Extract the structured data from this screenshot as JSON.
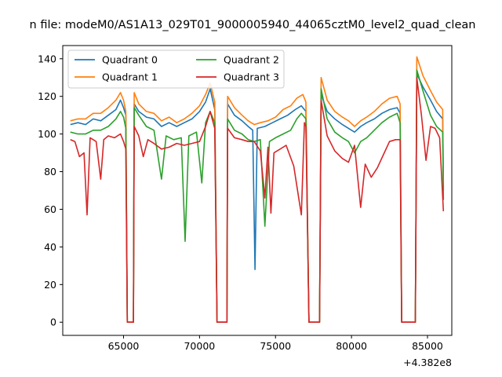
{
  "chart_data": {
    "type": "line",
    "title": "n file: modeM0/AS1A13_029T01_9000005940_44065cztM0_level2_quad_clean",
    "xlabel": "",
    "ylabel": "",
    "x_offset_label": "+4.382e8",
    "xlim": [
      61000,
      86600
    ],
    "ylim": [
      -7,
      147
    ],
    "x_ticks": [
      65000,
      70000,
      75000,
      80000,
      85000
    ],
    "x_tick_labels": [
      "65000",
      "70000",
      "75000",
      "80000",
      "85000"
    ],
    "y_ticks": [
      0,
      20,
      40,
      60,
      80,
      100,
      120,
      140
    ],
    "y_tick_labels": [
      "0",
      "20",
      "40",
      "60",
      "80",
      "100",
      "120",
      "140"
    ],
    "grid": false,
    "legend_placement": "upper-left, two columns",
    "series": [
      {
        "name": "Quadrant 0",
        "color": "#1f77b4",
        "points": [
          [
            61500,
            105
          ],
          [
            62000,
            106
          ],
          [
            62500,
            105
          ],
          [
            63000,
            108
          ],
          [
            63500,
            107
          ],
          [
            64000,
            110
          ],
          [
            64500,
            113
          ],
          [
            64800,
            118
          ],
          [
            65000,
            114
          ],
          [
            65150,
            110
          ],
          [
            65250,
            0
          ],
          [
            65650,
            0
          ],
          [
            65700,
            116
          ],
          [
            66000,
            112
          ],
          [
            66500,
            109
          ],
          [
            67000,
            108
          ],
          [
            67500,
            104
          ],
          [
            68000,
            106
          ],
          [
            68500,
            104
          ],
          [
            69000,
            106
          ],
          [
            69500,
            108
          ],
          [
            70000,
            112
          ],
          [
            70400,
            117
          ],
          [
            70700,
            124
          ],
          [
            71000,
            113
          ],
          [
            71150,
            0
          ],
          [
            71800,
            0
          ],
          [
            71850,
            116
          ],
          [
            72300,
            110
          ],
          [
            72800,
            107
          ],
          [
            73200,
            104
          ],
          [
            73500,
            102
          ],
          [
            73650,
            28
          ],
          [
            73800,
            103
          ],
          [
            74300,
            104
          ],
          [
            74800,
            106
          ],
          [
            75300,
            108
          ],
          [
            75800,
            110
          ],
          [
            76300,
            113
          ],
          [
            76700,
            115
          ],
          [
            77000,
            112
          ],
          [
            77200,
            0
          ],
          [
            77900,
            0
          ],
          [
            78000,
            121
          ],
          [
            78400,
            112
          ],
          [
            78900,
            108
          ],
          [
            79400,
            105
          ],
          [
            79800,
            103
          ],
          [
            80200,
            101
          ],
          [
            80600,
            104
          ],
          [
            81000,
            106
          ],
          [
            81500,
            108
          ],
          [
            82000,
            111
          ],
          [
            82500,
            113
          ],
          [
            83000,
            114
          ],
          [
            83200,
            111
          ],
          [
            83300,
            0
          ],
          [
            84200,
            0
          ],
          [
            84300,
            132
          ],
          [
            84700,
            125
          ],
          [
            85200,
            118
          ],
          [
            85600,
            112
          ],
          [
            86000,
            108
          ],
          [
            86050,
            70
          ]
        ]
      },
      {
        "name": "Quadrant 1",
        "color": "#ff7f0e",
        "points": [
          [
            61500,
            107
          ],
          [
            62000,
            108
          ],
          [
            62500,
            108
          ],
          [
            63000,
            111
          ],
          [
            63500,
            111
          ],
          [
            64000,
            114
          ],
          [
            64500,
            118
          ],
          [
            64800,
            122
          ],
          [
            65000,
            118
          ],
          [
            65150,
            112
          ],
          [
            65250,
            0
          ],
          [
            65650,
            0
          ],
          [
            65700,
            122
          ],
          [
            66000,
            116
          ],
          [
            66500,
            112
          ],
          [
            67000,
            111
          ],
          [
            67500,
            107
          ],
          [
            68000,
            109
          ],
          [
            68500,
            106
          ],
          [
            69000,
            108
          ],
          [
            69500,
            111
          ],
          [
            70000,
            115
          ],
          [
            70400,
            121
          ],
          [
            70700,
            127
          ],
          [
            71000,
            117
          ],
          [
            71150,
            0
          ],
          [
            71800,
            0
          ],
          [
            71850,
            120
          ],
          [
            72300,
            114
          ],
          [
            72800,
            110
          ],
          [
            73200,
            107
          ],
          [
            73600,
            105
          ],
          [
            74000,
            106
          ],
          [
            74500,
            107
          ],
          [
            75000,
            109
          ],
          [
            75500,
            113
          ],
          [
            76000,
            115
          ],
          [
            76400,
            119
          ],
          [
            76800,
            121
          ],
          [
            77000,
            117
          ],
          [
            77200,
            0
          ],
          [
            77900,
            0
          ],
          [
            78000,
            130
          ],
          [
            78400,
            118
          ],
          [
            78900,
            112
          ],
          [
            79400,
            109
          ],
          [
            79800,
            107
          ],
          [
            80200,
            104
          ],
          [
            80600,
            107
          ],
          [
            81000,
            109
          ],
          [
            81500,
            112
          ],
          [
            82000,
            116
          ],
          [
            82500,
            119
          ],
          [
            83000,
            120
          ],
          [
            83200,
            116
          ],
          [
            83300,
            0
          ],
          [
            84200,
            0
          ],
          [
            84300,
            141
          ],
          [
            84700,
            131
          ],
          [
            85200,
            123
          ],
          [
            85600,
            117
          ],
          [
            86000,
            113
          ],
          [
            86050,
            72
          ]
        ]
      },
      {
        "name": "Quadrant 2",
        "color": "#2ca02c",
        "points": [
          [
            61500,
            101
          ],
          [
            62000,
            100
          ],
          [
            62500,
            100
          ],
          [
            63000,
            102
          ],
          [
            63500,
            102
          ],
          [
            64000,
            104
          ],
          [
            64500,
            108
          ],
          [
            64800,
            112
          ],
          [
            65000,
            109
          ],
          [
            65150,
            103
          ],
          [
            65250,
            0
          ],
          [
            65650,
            0
          ],
          [
            65700,
            114
          ],
          [
            66000,
            110
          ],
          [
            66500,
            104
          ],
          [
            67000,
            102
          ],
          [
            67500,
            76
          ],
          [
            67800,
            99
          ],
          [
            68300,
            97
          ],
          [
            68800,
            98
          ],
          [
            69050,
            43
          ],
          [
            69300,
            99
          ],
          [
            69800,
            101
          ],
          [
            70150,
            74
          ],
          [
            70400,
            106
          ],
          [
            70700,
            112
          ],
          [
            71000,
            106
          ],
          [
            71150,
            0
          ],
          [
            71800,
            0
          ],
          [
            71850,
            108
          ],
          [
            72300,
            102
          ],
          [
            72800,
            100
          ],
          [
            73200,
            97
          ],
          [
            73600,
            96
          ],
          [
            74000,
            97
          ],
          [
            74300,
            51
          ],
          [
            74600,
            96
          ],
          [
            75000,
            98
          ],
          [
            75500,
            100
          ],
          [
            76000,
            102
          ],
          [
            76400,
            108
          ],
          [
            76700,
            111
          ],
          [
            77000,
            108
          ],
          [
            77200,
            0
          ],
          [
            77900,
            0
          ],
          [
            78000,
            124
          ],
          [
            78400,
            108
          ],
          [
            78900,
            101
          ],
          [
            79400,
            98
          ],
          [
            79800,
            96
          ],
          [
            80200,
            90
          ],
          [
            80600,
            96
          ],
          [
            81000,
            98
          ],
          [
            81500,
            102
          ],
          [
            82000,
            106
          ],
          [
            82500,
            109
          ],
          [
            83000,
            111
          ],
          [
            83200,
            106
          ],
          [
            83300,
            0
          ],
          [
            84200,
            0
          ],
          [
            84300,
            134
          ],
          [
            84700,
            123
          ],
          [
            85200,
            110
          ],
          [
            85600,
            104
          ],
          [
            86000,
            101
          ],
          [
            86050,
            65
          ]
        ]
      },
      {
        "name": "Quadrant 3",
        "color": "#d62728",
        "points": [
          [
            61500,
            97
          ],
          [
            61800,
            96
          ],
          [
            62100,
            88
          ],
          [
            62400,
            90
          ],
          [
            62600,
            57
          ],
          [
            62800,
            98
          ],
          [
            63200,
            96
          ],
          [
            63500,
            76
          ],
          [
            63700,
            97
          ],
          [
            64000,
            99
          ],
          [
            64400,
            98
          ],
          [
            64800,
            100
          ],
          [
            65000,
            96
          ],
          [
            65150,
            92
          ],
          [
            65250,
            0
          ],
          [
            65650,
            0
          ],
          [
            65700,
            104
          ],
          [
            66000,
            99
          ],
          [
            66300,
            88
          ],
          [
            66600,
            97
          ],
          [
            67000,
            95
          ],
          [
            67500,
            92
          ],
          [
            68000,
            93
          ],
          [
            68500,
            95
          ],
          [
            69000,
            94
          ],
          [
            69500,
            95
          ],
          [
            70000,
            96
          ],
          [
            70400,
            104
          ],
          [
            70700,
            112
          ],
          [
            71000,
            103
          ],
          [
            71150,
            0
          ],
          [
            71800,
            0
          ],
          [
            71850,
            103
          ],
          [
            72300,
            98
          ],
          [
            72800,
            97
          ],
          [
            73200,
            96
          ],
          [
            73600,
            96
          ],
          [
            74000,
            91
          ],
          [
            74300,
            66
          ],
          [
            74500,
            93
          ],
          [
            74700,
            58
          ],
          [
            74900,
            90
          ],
          [
            75300,
            92
          ],
          [
            75700,
            94
          ],
          [
            76200,
            83
          ],
          [
            76700,
            57
          ],
          [
            76900,
            106
          ],
          [
            77000,
            104
          ],
          [
            77200,
            0
          ],
          [
            77900,
            0
          ],
          [
            78000,
            118
          ],
          [
            78400,
            99
          ],
          [
            78900,
            91
          ],
          [
            79400,
            87
          ],
          [
            79800,
            85
          ],
          [
            80200,
            94
          ],
          [
            80600,
            61
          ],
          [
            80900,
            84
          ],
          [
            81300,
            77
          ],
          [
            81700,
            82
          ],
          [
            82100,
            89
          ],
          [
            82500,
            96
          ],
          [
            82900,
            97
          ],
          [
            83200,
            97
          ],
          [
            83300,
            0
          ],
          [
            84200,
            0
          ],
          [
            84300,
            130
          ],
          [
            84600,
            110
          ],
          [
            84900,
            86
          ],
          [
            85200,
            104
          ],
          [
            85500,
            103
          ],
          [
            85800,
            98
          ],
          [
            86050,
            59
          ]
        ]
      }
    ]
  }
}
